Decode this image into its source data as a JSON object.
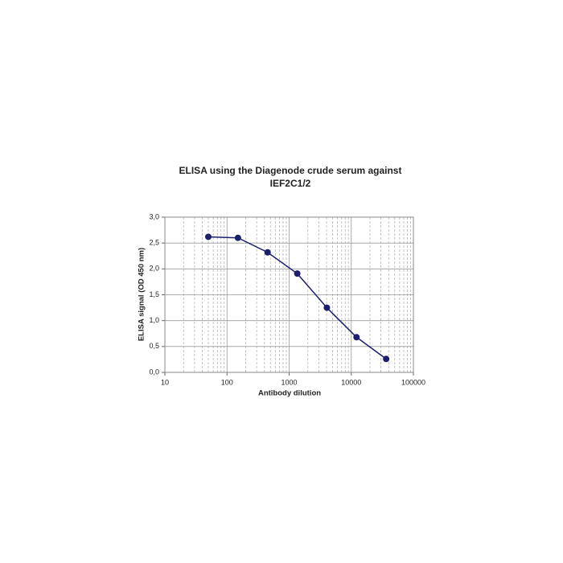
{
  "chart_data": {
    "type": "line",
    "title": [
      "ELISA using the Diagenode crude serum against",
      "IEF2C1/2"
    ],
    "x_label": "Antibody dilution",
    "y_label": "ELISA signal (OD 450 nm)",
    "x": [
      50,
      150,
      450,
      1350,
      4050,
      12150,
      36450
    ],
    "series": [
      {
        "color": "#1c1f6e",
        "values": [
          2.62,
          2.6,
          2.32,
          1.91,
          1.25,
          0.68,
          0.26
        ]
      }
    ],
    "x_log": true,
    "xlim": [
      10,
      100000
    ],
    "xticks": [
      10,
      100,
      1000,
      10000,
      100000
    ],
    "x_minor_ticks": [
      20,
      30,
      40,
      50,
      60,
      70,
      80,
      90,
      200,
      300,
      400,
      500,
      600,
      700,
      800,
      900,
      2000,
      3000,
      4000,
      5000,
      6000,
      7000,
      8000,
      9000,
      20000,
      30000,
      40000,
      50000,
      60000,
      70000,
      80000,
      90000
    ],
    "ylim": [
      0,
      3
    ],
    "yticks": [
      {
        "value": 0,
        "label": "0,0"
      },
      {
        "value": 0.5,
        "label": "0,5"
      },
      {
        "value": 1,
        "label": "1,0"
      },
      {
        "value": 1.5,
        "label": "1,5"
      },
      {
        "value": 2,
        "label": "2,0"
      },
      {
        "value": 2.5,
        "label": "2,5"
      },
      {
        "value": 3,
        "label": "3,0"
      }
    ],
    "grid": true
  }
}
